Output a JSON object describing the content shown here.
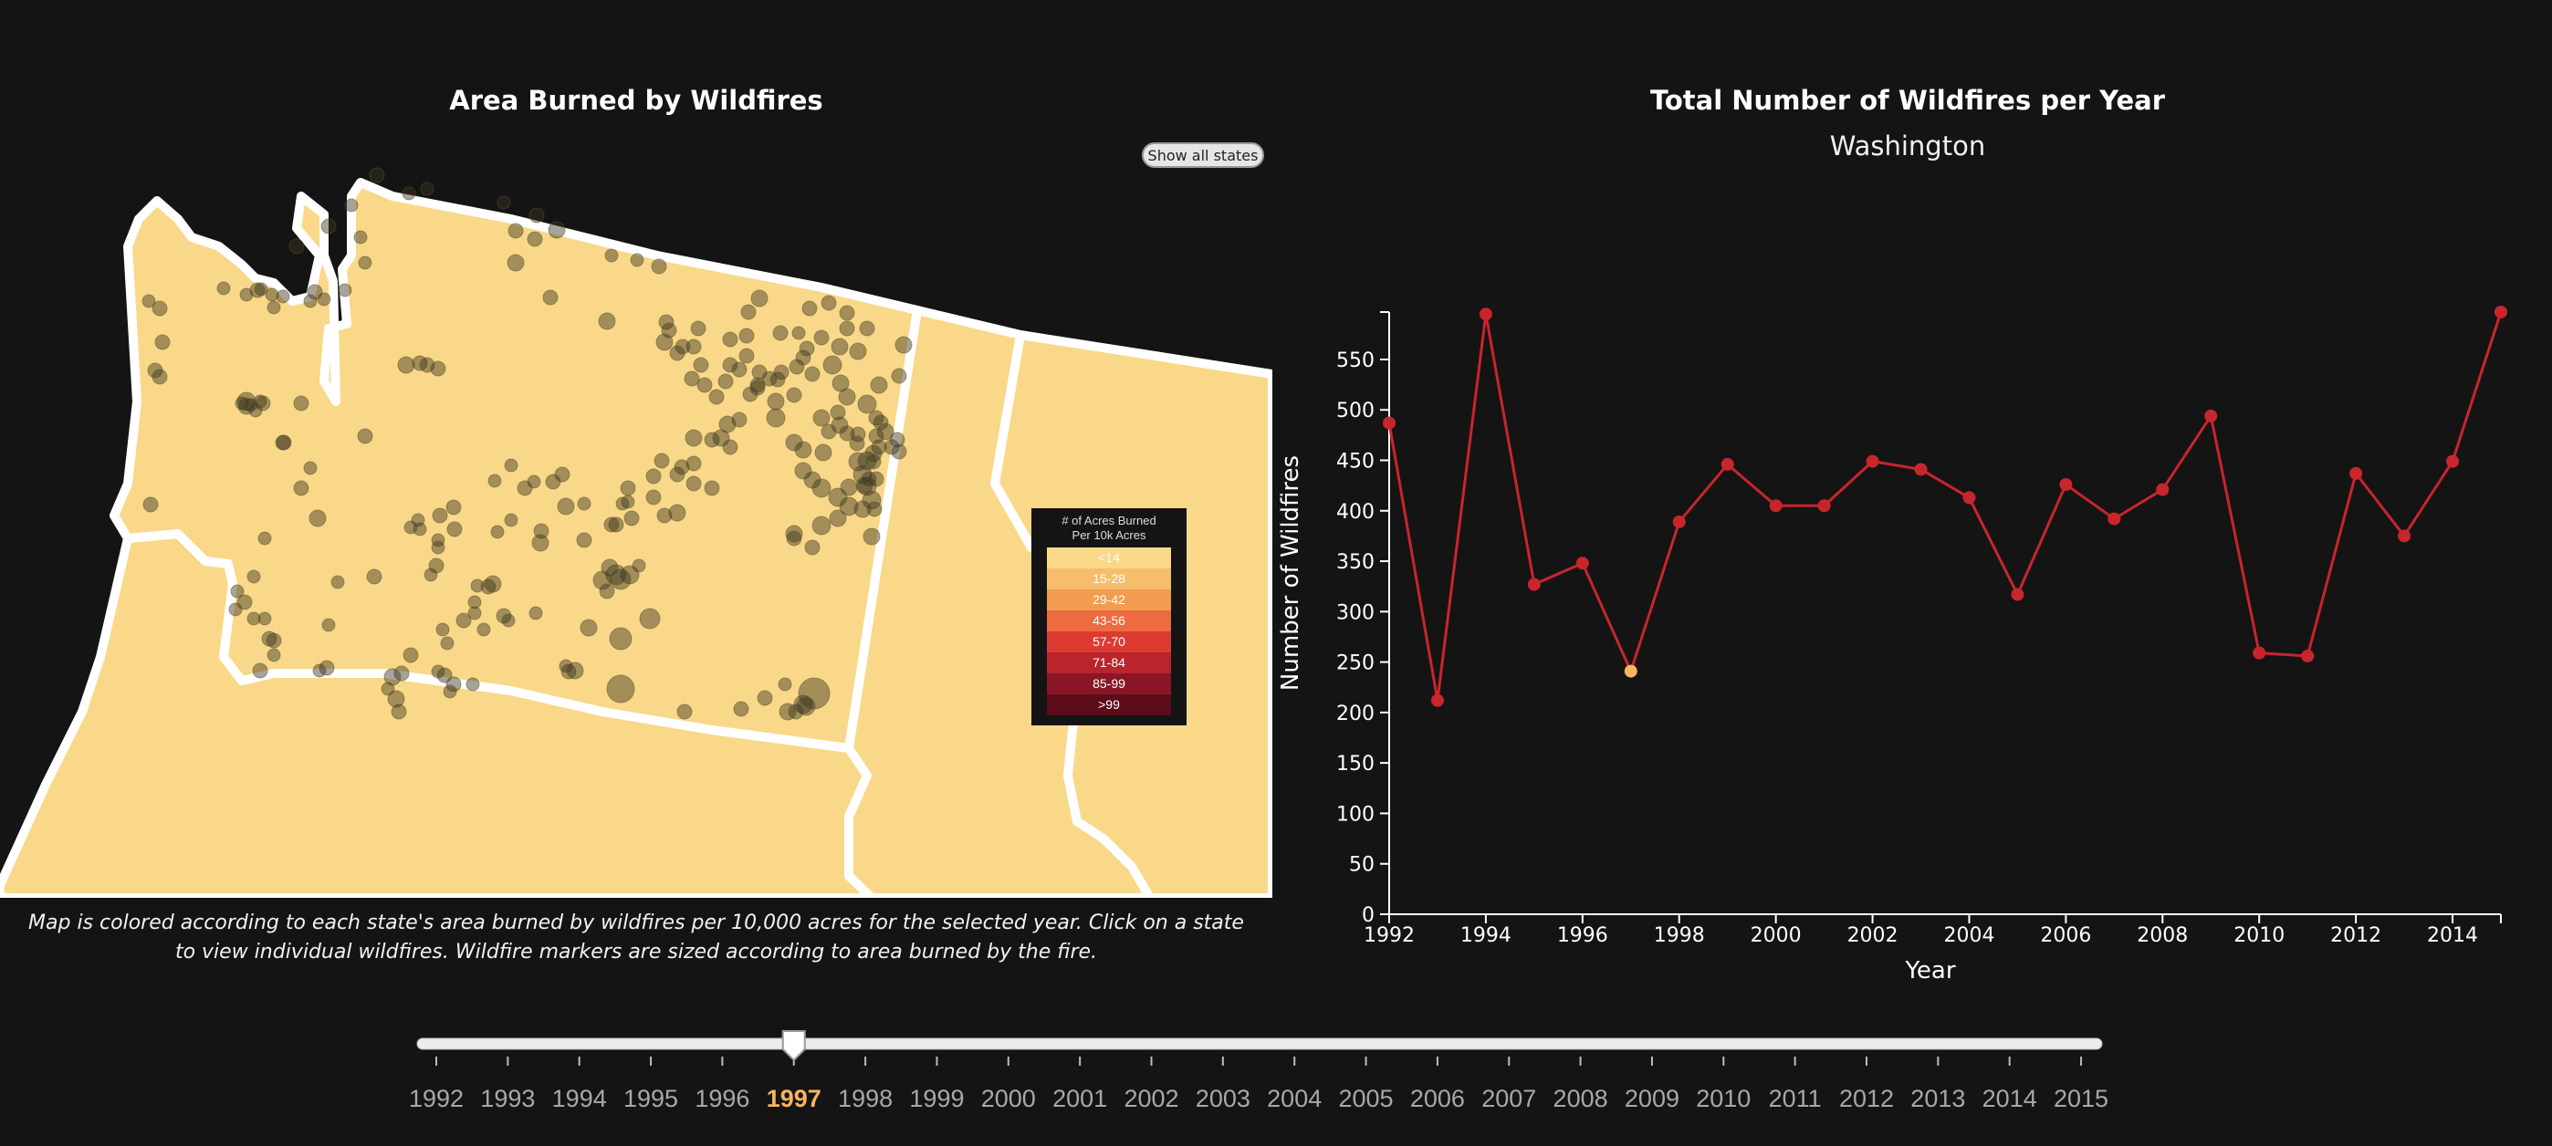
{
  "map": {
    "title": "Area Burned by Wildfires",
    "show_all_button": "Show all states",
    "caption": "Map is colored according to each state's area burned by wildfires per 10,000 acres for the selected year. Click on a state to view individual wildfires. Wildfire markers are sized according to area burned by the fire.",
    "legend": {
      "title_line1": "# of Acres Burned",
      "title_line2": "Per 10k Acres",
      "bins": [
        {
          "label": "<14",
          "color": "#f9d889"
        },
        {
          "label": "15-28",
          "color": "#f6be6c"
        },
        {
          "label": "29-42",
          "color": "#f29c52"
        },
        {
          "label": "43-56",
          "color": "#ec6b3f"
        },
        {
          "label": "57-70",
          "color": "#dc3b32"
        },
        {
          "label": "71-84",
          "color": "#b9242d"
        },
        {
          "label": "85-99",
          "color": "#8a1727"
        },
        {
          "label": ">99",
          "color": "#5c0c1a"
        }
      ]
    },
    "colors": {
      "land": "#f9d889",
      "border": "#ffffff",
      "marker": "#3a3520"
    }
  },
  "chart": {
    "title": "Total Number of Wildfires per Year",
    "subtitle": "Washington",
    "xlabel": "Year",
    "ylabel": "Number of Wildfires",
    "line_color": "#c8252d",
    "highlight_color": "#f7b45e"
  },
  "chart_data": {
    "type": "line",
    "x": [
      1992,
      1993,
      1994,
      1995,
      1996,
      1997,
      1998,
      1999,
      2000,
      2001,
      2002,
      2003,
      2004,
      2005,
      2006,
      2007,
      2008,
      2009,
      2010,
      2011,
      2012,
      2013,
      2014,
      2015
    ],
    "y": [
      487,
      212,
      595,
      327,
      348,
      241,
      389,
      446,
      405,
      405,
      449,
      441,
      413,
      317,
      426,
      392,
      421,
      494,
      259,
      256,
      437,
      375,
      449,
      597
    ],
    "highlight_year": 1997,
    "xlabel": "Year",
    "ylabel": "Number of Wildfires",
    "ylim": [
      0,
      597
    ],
    "xlim": [
      1992,
      2015
    ],
    "y_ticks": [
      0,
      50,
      100,
      150,
      200,
      250,
      300,
      350,
      400,
      450,
      500,
      550
    ],
    "x_ticks": [
      1992,
      1994,
      1996,
      1998,
      2000,
      2002,
      2004,
      2006,
      2008,
      2010,
      2012,
      2014
    ],
    "grid": false
  },
  "slider": {
    "years": [
      "1992",
      "1993",
      "1994",
      "1995",
      "1996",
      "1997",
      "1998",
      "1999",
      "2000",
      "2001",
      "2002",
      "2003",
      "2004",
      "2005",
      "2006",
      "2007",
      "2008",
      "2009",
      "2010",
      "2011",
      "2012",
      "2013",
      "2014",
      "2015"
    ],
    "selected": "1997",
    "selected_color": "#f7b45e",
    "label_color": "#a8a8a8"
  }
}
